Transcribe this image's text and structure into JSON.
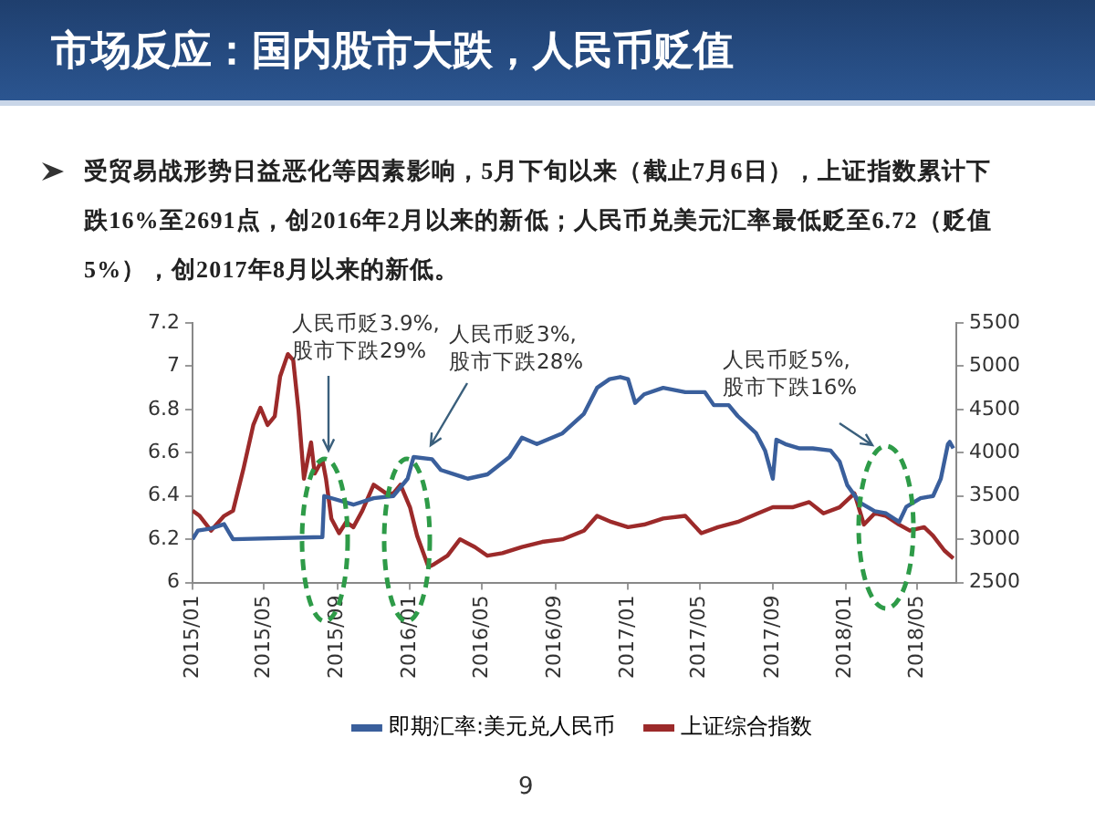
{
  "chart_data": {
    "type": "line",
    "title": "市场反应：国内股市大跌，人民币贬值",
    "subtitle": "受贸易战形势日益恶化等因素影响，5月下旬以来（截止7月6日），上证指数累计下跌16%至2691点，创2016年2月以来的新低；人民币兑美元汇率最低贬至6.72（贬值5%），创2017年8月以来的新低。",
    "annotations": [
      "人民币贬3.9%,\n股市下跌29%",
      "人民币贬3%,\n股市下跌28%",
      "人民币贬5%,\n股市下跌16%",
      "9"
    ],
    "xlim": [
      "2015-01-01",
      "2018-07-06"
    ],
    "xticks": [
      {
        "value": "2015-01",
        "label": "2015/01"
      },
      {
        "value": "2015-05",
        "label": "2015/05"
      },
      {
        "value": "2015-09",
        "label": "2015/09"
      },
      {
        "value": "2016-01",
        "label": "2016/01"
      },
      {
        "value": "2016-05",
        "label": "2016/05"
      },
      {
        "value": "2016-09",
        "label": "2016/09"
      },
      {
        "value": "2017-01",
        "label": "2017/01"
      },
      {
        "value": "2017-05",
        "label": "2017/05"
      },
      {
        "value": "2017-09",
        "label": "2017/09"
      },
      {
        "value": "2018-01",
        "label": "2018/01"
      },
      {
        "value": "2018-05",
        "label": "2018/05"
      }
    ],
    "ylim": [
      6,
      7.2
    ],
    "yticks": [
      6,
      6.2,
      6.4,
      6.6,
      6.8,
      {
        "value": 7,
        "label": "7"
      },
      7.2
    ],
    "y2lim": [
      2500,
      5500
    ],
    "y2ticks": [
      2500,
      3000,
      3500,
      4000,
      4500,
      5000,
      5500
    ],
    "grid": false,
    "legend": "bottom",
    "marker": "none",
    "line_style": "solid",
    "series": [
      {
        "name": "即期汇率:美元兑人民币",
        "color": "#3a5f9c",
        "x": [
          "2015-01-01",
          "2015-01-10",
          "2015-02-01",
          "2015-02-23",
          "2015-03-10",
          "2015-08-07",
          "2015-08-10",
          "2015-09-28",
          "2015-11-01",
          "2015-12-04",
          "2015-12-28",
          "2016-01-07",
          "2016-02-07",
          "2016-02-22",
          "2016-04-07",
          "2016-05-10",
          "2016-06-16",
          "2016-07-07",
          "2016-08-01",
          "2016-09-13",
          "2016-10-19",
          "2016-11-10",
          "2016-12-01",
          "2016-12-19",
          "2017-01-01",
          "2017-01-13",
          "2017-01-28",
          "2017-03-01",
          "2017-04-07",
          "2017-05-10",
          "2017-05-25",
          "2017-06-19",
          "2017-07-04",
          "2017-08-04",
          "2017-08-19",
          "2017-09-01",
          "2017-09-07",
          "2017-09-22",
          "2017-10-16",
          "2017-11-07",
          "2017-12-07",
          "2017-12-22",
          "2018-01-04",
          "2018-01-25",
          "2018-02-19",
          "2018-03-10",
          "2018-04-01",
          "2018-04-13",
          "2018-05-07",
          "2018-05-28",
          "2018-06-10",
          "2018-06-22",
          "2018-06-25",
          "2018-07-01"
        ],
        "values": [
          6.2,
          6.24,
          6.25,
          6.27,
          6.2,
          6.21,
          6.4,
          6.36,
          6.39,
          6.4,
          6.48,
          6.58,
          6.57,
          6.52,
          6.48,
          6.5,
          6.58,
          6.67,
          6.64,
          6.69,
          6.78,
          6.9,
          6.94,
          6.95,
          6.94,
          6.83,
          6.87,
          6.9,
          6.88,
          6.88,
          6.82,
          6.82,
          6.77,
          6.69,
          6.61,
          6.48,
          6.66,
          6.64,
          6.62,
          6.62,
          6.61,
          6.56,
          6.45,
          6.37,
          6.33,
          6.32,
          6.28,
          6.35,
          6.39,
          6.4,
          6.48,
          6.64,
          6.65,
          6.62
        ]
      },
      {
        "name": "上证综合指数",
        "color": "#9c2a2a",
        "axis": "y2",
        "x": [
          "2015-01-01",
          "2015-01-13",
          "2015-02-01",
          "2015-02-23",
          "2015-03-10",
          "2015-03-28",
          "2015-04-13",
          "2015-04-25",
          "2015-05-07",
          "2015-05-19",
          "2015-05-28",
          "2015-06-10",
          "2015-06-19",
          "2015-06-28",
          "2015-07-07",
          "2015-07-19",
          "2015-07-25",
          "2015-08-07",
          "2015-08-13",
          "2015-08-22",
          "2015-09-04",
          "2015-09-16",
          "2015-09-28",
          "2015-10-13",
          "2015-11-01",
          "2015-11-22",
          "2015-12-04",
          "2015-12-16",
          "2016-01-01",
          "2016-01-13",
          "2016-02-01",
          "2016-02-10",
          "2016-03-04",
          "2016-03-25",
          "2016-04-19",
          "2016-05-10",
          "2016-06-04",
          "2016-07-07",
          "2016-08-10",
          "2016-09-13",
          "2016-10-19",
          "2016-11-10",
          "2016-12-04",
          "2017-01-01",
          "2017-01-28",
          "2017-03-01",
          "2017-04-07",
          "2017-05-04",
          "2017-06-01",
          "2017-07-04",
          "2017-08-07",
          "2017-09-01",
          "2017-10-04",
          "2017-11-01",
          "2017-11-25",
          "2017-12-22",
          "2018-01-16",
          "2018-02-01",
          "2018-02-19",
          "2018-03-10",
          "2018-04-01",
          "2018-04-19",
          "2018-05-13",
          "2018-05-28",
          "2018-06-16",
          "2018-07-01"
        ],
        "values": [
          3330,
          3270,
          3100,
          3270,
          3330,
          3830,
          4320,
          4520,
          4320,
          4420,
          4880,
          5140,
          5070,
          4480,
          3700,
          4120,
          3760,
          3920,
          3700,
          3240,
          3070,
          3200,
          3140,
          3330,
          3630,
          3530,
          3530,
          3630,
          3370,
          3040,
          2680,
          2710,
          2810,
          3000,
          2910,
          2810,
          2840,
          2910,
          2970,
          3000,
          3100,
          3270,
          3200,
          3140,
          3170,
          3240,
          3270,
          3070,
          3140,
          3200,
          3300,
          3370,
          3370,
          3430,
          3300,
          3370,
          3530,
          3170,
          3300,
          3270,
          3170,
          3100,
          3140,
          3040,
          2870,
          2780
        ]
      }
    ]
  }
}
